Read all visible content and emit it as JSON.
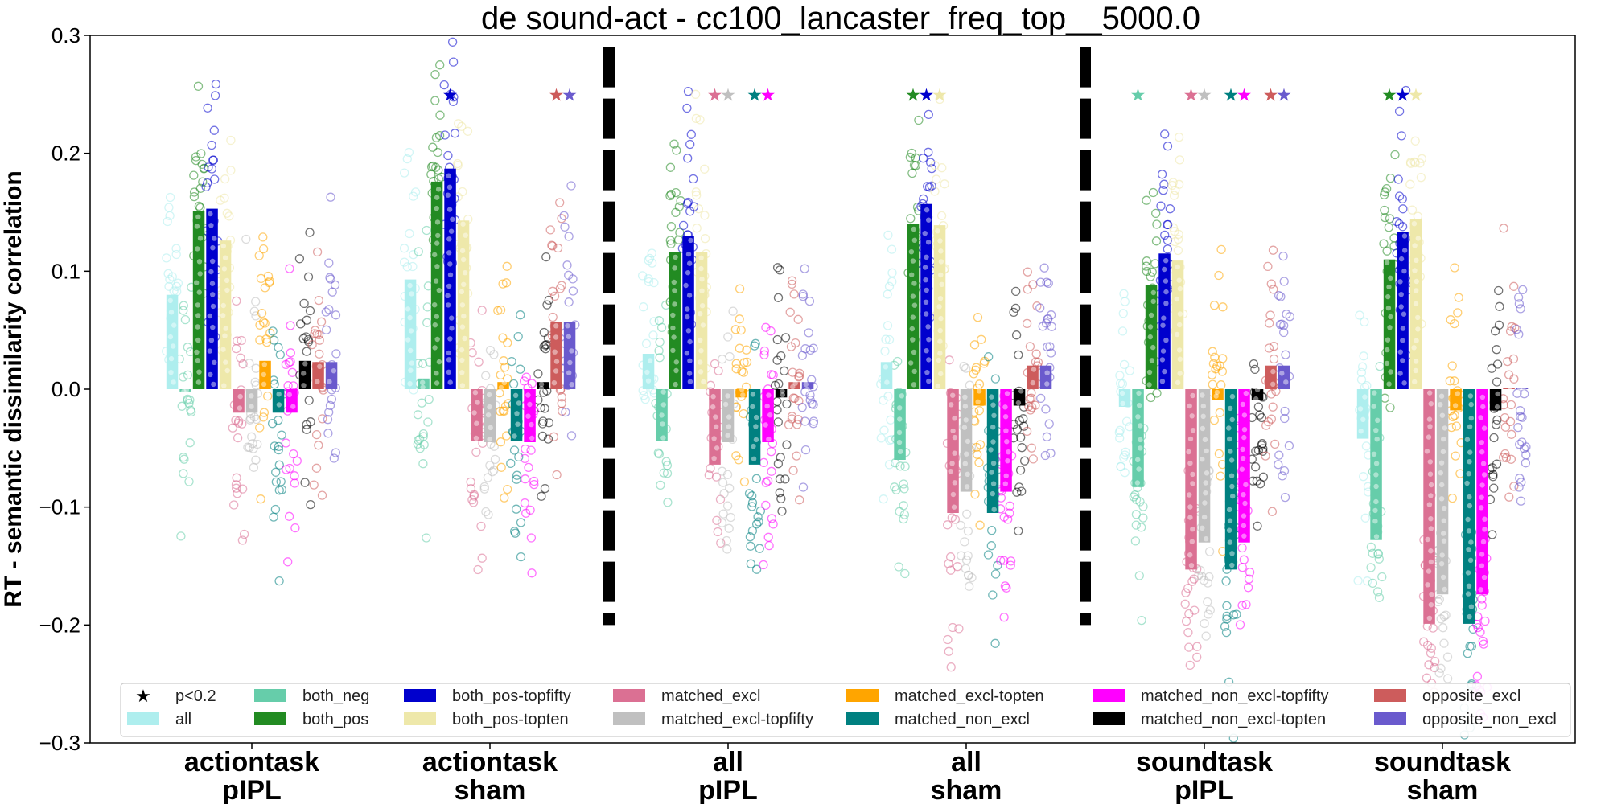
{
  "chart_data": {
    "type": "bar",
    "title": "de sound-act - cc100_lancaster_freq_top__5000.0",
    "xlabel": "",
    "ylabel": "RT - semantic dissimilarity correlation",
    "ylim": [
      -0.3,
      0.3
    ],
    "yticks": [
      -0.3,
      -0.2,
      -0.1,
      0.0,
      0.1,
      0.2,
      0.3
    ],
    "ytick_labels": [
      "−0.3",
      "−0.2",
      "−0.1",
      "0.0",
      "0.1",
      "0.2",
      "0.3"
    ],
    "grid": false,
    "legend_position": "bottom",
    "categories": [
      {
        "line1": "actiontask",
        "line2": "pIPL"
      },
      {
        "line1": "actiontask",
        "line2": "sham"
      },
      {
        "line1": "all",
        "line2": "pIPL"
      },
      {
        "line1": "all",
        "line2": "sham"
      },
      {
        "line1": "soundtask",
        "line2": "pIPL"
      },
      {
        "line1": "soundtask",
        "line2": "sham"
      }
    ],
    "separators_after_category": [
      1,
      3
    ],
    "significance_marker": {
      "symbol": "★",
      "label": "p<0.2"
    },
    "series": [
      {
        "name": "all",
        "color": "#aeeeee",
        "values": [
          0.08,
          0.093,
          0.03,
          0.023,
          -0.015,
          -0.042
        ],
        "significant": [
          false,
          false,
          false,
          false,
          false,
          false
        ]
      },
      {
        "name": "both_neg",
        "color": "#66cdaa",
        "values": [
          -0.002,
          0.009,
          -0.044,
          -0.06,
          -0.083,
          -0.128
        ],
        "significant": [
          false,
          false,
          false,
          false,
          true,
          false
        ]
      },
      {
        "name": "both_pos",
        "color": "#228b22",
        "values": [
          0.151,
          0.176,
          0.116,
          0.14,
          0.088,
          0.11
        ],
        "significant": [
          false,
          false,
          false,
          true,
          false,
          true
        ]
      },
      {
        "name": "both_pos-topfifty",
        "color": "#0000cd",
        "values": [
          0.153,
          0.187,
          0.13,
          0.157,
          0.115,
          0.133
        ],
        "significant": [
          false,
          true,
          false,
          true,
          false,
          true
        ]
      },
      {
        "name": "both_pos-topten",
        "color": "#eee8aa",
        "values": [
          0.126,
          0.143,
          0.116,
          0.139,
          0.109,
          0.144
        ],
        "significant": [
          false,
          false,
          false,
          true,
          false,
          true
        ]
      },
      {
        "name": "matched_excl",
        "color": "#db7093",
        "values": [
          -0.02,
          -0.044,
          -0.064,
          -0.105,
          -0.153,
          -0.199
        ],
        "significant": [
          false,
          false,
          true,
          false,
          true,
          false
        ]
      },
      {
        "name": "matched_excl-topfifty",
        "color": "#c0c0c0",
        "values": [
          -0.02,
          -0.045,
          -0.045,
          -0.087,
          -0.13,
          -0.174
        ],
        "significant": [
          false,
          false,
          true,
          false,
          true,
          false
        ]
      },
      {
        "name": "matched_excl-topten",
        "color": "#ffa500",
        "values": [
          0.024,
          0.006,
          -0.007,
          -0.014,
          -0.009,
          -0.018
        ],
        "significant": [
          false,
          false,
          false,
          false,
          false,
          false
        ]
      },
      {
        "name": "matched_non_excl",
        "color": "#008080",
        "values": [
          -0.02,
          -0.044,
          -0.064,
          -0.105,
          -0.153,
          -0.199
        ],
        "significant": [
          false,
          false,
          true,
          false,
          true,
          false
        ]
      },
      {
        "name": "matched_non_excl-topfifty",
        "color": "#ff00ff",
        "values": [
          -0.02,
          -0.045,
          -0.045,
          -0.087,
          -0.13,
          -0.174
        ],
        "significant": [
          false,
          false,
          true,
          false,
          true,
          false
        ]
      },
      {
        "name": "matched_non_excl-topten",
        "color": "#000000",
        "values": [
          0.024,
          0.006,
          -0.007,
          -0.014,
          -0.009,
          -0.018
        ],
        "significant": [
          false,
          false,
          false,
          false,
          false,
          false
        ]
      },
      {
        "name": "opposite_excl",
        "color": "#cd5c5c",
        "values": [
          0.023,
          0.057,
          0.006,
          0.02,
          0.02,
          0.001
        ],
        "significant": [
          false,
          true,
          false,
          false,
          true,
          false
        ]
      },
      {
        "name": "opposite_non_excl",
        "color": "#6a5acd",
        "values": [
          0.023,
          0.057,
          0.006,
          0.02,
          0.02,
          0.001
        ],
        "significant": [
          false,
          true,
          false,
          false,
          true,
          false
        ]
      }
    ],
    "legend_order": [
      "p<0.2",
      "all",
      "both_neg",
      "both_pos",
      "both_pos-topfifty",
      "both_pos-topten",
      "matched_excl",
      "matched_excl-topfifty",
      "matched_excl-topten",
      "matched_non_excl",
      "matched_non_excl-topfifty",
      "matched_non_excl-topten",
      "opposite_excl",
      "opposite_non_excl"
    ]
  }
}
